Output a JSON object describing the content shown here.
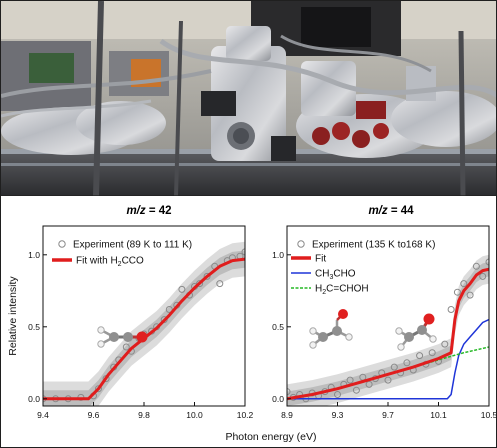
{
  "figure": {
    "photo_alt": "photograph of a foil-wrapped vacuum chamber apparatus",
    "colors": {
      "fit": "#e01d1d",
      "ch3cho": "#1f35d8",
      "h2cchoh": "#25b825",
      "band_outer": "#dcdcdc",
      "band_inner": "#bdbdbd",
      "marker": "#8a8a8a"
    }
  },
  "chart_data": [
    {
      "type": "line",
      "title_prefix": "m/z",
      "title_value": " = 42",
      "xlabel": "Photon energy (eV)",
      "ylabel": "Relative intensity",
      "xlim": [
        9.4,
        10.2
      ],
      "ylim": [
        -0.05,
        1.2
      ],
      "xticks": [
        "9.4",
        "9.6",
        "9.8",
        "10.0",
        "10.2"
      ],
      "yticks": [
        "0.0",
        "0.5",
        "1.0"
      ],
      "legend_position": "top-left",
      "legend": {
        "experiment": "Experiment (89 K to 111 K)",
        "fit_prefix": "Fit with H",
        "fit_sub": "2",
        "fit_suffix": "CCO"
      },
      "series": [
        {
          "name": "Experiment (89 K to 111 K)",
          "kind": "markers",
          "x": [
            9.4,
            9.45,
            9.5,
            9.55,
            9.6,
            9.62,
            9.65,
            9.68,
            9.7,
            9.73,
            9.75,
            9.78,
            9.8,
            9.83,
            9.85,
            9.88,
            9.9,
            9.93,
            9.95,
            9.98,
            10.0,
            10.02,
            10.05,
            10.08,
            10.1,
            10.13,
            10.15,
            10.18,
            10.2
          ],
          "y": [
            0.0,
            0.0,
            0.0,
            0.01,
            0.02,
            0.07,
            0.14,
            0.22,
            0.27,
            0.36,
            0.33,
            0.42,
            0.45,
            0.47,
            0.5,
            0.55,
            0.62,
            0.65,
            0.76,
            0.72,
            0.78,
            0.8,
            0.85,
            0.92,
            0.8,
            0.96,
            0.98,
            0.99,
            1.02
          ]
        },
        {
          "name": "Fit with H2CCO",
          "kind": "fit",
          "x": [
            9.4,
            9.58,
            9.62,
            9.66,
            9.7,
            9.75,
            9.8,
            9.85,
            9.9,
            9.95,
            10.0,
            10.05,
            10.1,
            10.15,
            10.2
          ],
          "y": [
            0.0,
            0.0,
            0.07,
            0.17,
            0.25,
            0.35,
            0.42,
            0.49,
            0.58,
            0.68,
            0.77,
            0.85,
            0.92,
            0.96,
            0.97
          ],
          "band_outer": 0.12,
          "band_inner": 0.06
        }
      ]
    },
    {
      "type": "line",
      "title_prefix": "m/z",
      "title_value": " = 44",
      "xlabel": "Photon energy (eV)",
      "ylabel": "",
      "xlim": [
        8.9,
        10.5
      ],
      "ylim": [
        -0.05,
        1.2
      ],
      "xticks": [
        "8.9",
        "9.3",
        "9.7",
        "10.1",
        "10.5"
      ],
      "yticks": [
        "0.0",
        "0.5",
        "1.0"
      ],
      "legend_position": "top-left",
      "legend": {
        "experiment": "Experiment (135 K to168 K)",
        "fit": "Fit",
        "ch3cho_a": "CH",
        "ch3cho_sub": "3",
        "ch3cho_b": "CHO",
        "h2cchoh_a": "H",
        "h2cchoh_sub": "2",
        "h2cchoh_b": "C=CHOH"
      },
      "series": [
        {
          "name": "Experiment (135 K to168 K)",
          "kind": "markers",
          "x": [
            8.9,
            8.95,
            9.0,
            9.05,
            9.1,
            9.15,
            9.2,
            9.25,
            9.3,
            9.35,
            9.4,
            9.45,
            9.5,
            9.55,
            9.6,
            9.65,
            9.7,
            9.75,
            9.8,
            9.85,
            9.9,
            9.95,
            10.0,
            10.05,
            10.1,
            10.15,
            10.2,
            10.25,
            10.3,
            10.35,
            10.4,
            10.45,
            10.5
          ],
          "y": [
            0.05,
            0.01,
            0.03,
            0.0,
            0.04,
            0.02,
            0.05,
            0.08,
            0.03,
            0.1,
            0.13,
            0.06,
            0.15,
            0.1,
            0.14,
            0.18,
            0.13,
            0.22,
            0.18,
            0.25,
            0.2,
            0.3,
            0.24,
            0.32,
            0.26,
            0.38,
            0.62,
            0.74,
            0.8,
            0.72,
            0.92,
            0.85,
            0.95
          ]
        },
        {
          "name": "Fit",
          "kind": "fit",
          "x": [
            8.9,
            9.1,
            9.3,
            9.5,
            9.7,
            9.9,
            10.1,
            10.2,
            10.23,
            10.26,
            10.3,
            10.35,
            10.4,
            10.45,
            10.5
          ],
          "y": [
            0.0,
            0.03,
            0.07,
            0.12,
            0.17,
            0.22,
            0.28,
            0.32,
            0.55,
            0.68,
            0.75,
            0.8,
            0.86,
            0.89,
            0.9
          ],
          "band_outer": 0.1,
          "band_inner": 0.05
        },
        {
          "name": "CH3CHO",
          "kind": "line",
          "color_key": "ch3cho",
          "x": [
            8.9,
            10.1,
            10.17,
            10.2,
            10.23,
            10.26,
            10.3,
            10.35,
            10.4,
            10.45,
            10.5
          ],
          "y": [
            0.0,
            0.0,
            0.0,
            0.03,
            0.18,
            0.3,
            0.38,
            0.43,
            0.48,
            0.53,
            0.55
          ]
        },
        {
          "name": "H2C=CHOH",
          "kind": "line",
          "color_key": "h2cchoh",
          "x": [
            8.9,
            9.1,
            9.3,
            9.5,
            9.7,
            9.9,
            10.1,
            10.3,
            10.5
          ],
          "y": [
            0.0,
            0.03,
            0.07,
            0.12,
            0.17,
            0.22,
            0.27,
            0.32,
            0.36
          ]
        }
      ]
    }
  ]
}
